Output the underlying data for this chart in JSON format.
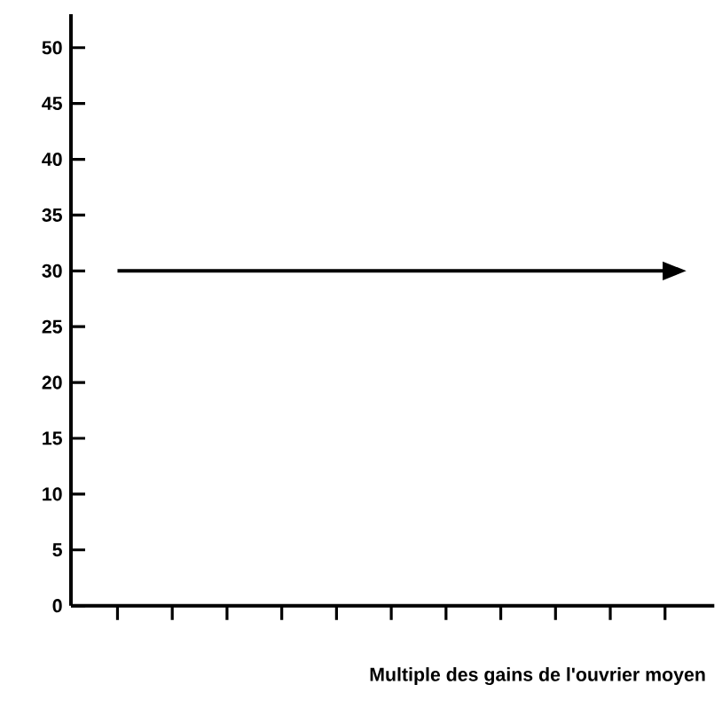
{
  "chart_data": {
    "type": "line",
    "xlabel": "Multiple des gains de l'ouvrier moyen",
    "categories": [
      null,
      null,
      null,
      null,
      null,
      null,
      null,
      null,
      null,
      null,
      null
    ],
    "series": [
      {
        "color": "#000000",
        "values": [
          30,
          30,
          30,
          30,
          30,
          30,
          30,
          30,
          30,
          30,
          30
        ]
      }
    ],
    "ylim": [
      0,
      53
    ],
    "yticks": [
      0,
      5,
      10,
      15,
      20,
      25,
      30,
      35,
      40,
      45,
      50
    ],
    "marker": "none",
    "line_style": "solid",
    "grid": false
  }
}
